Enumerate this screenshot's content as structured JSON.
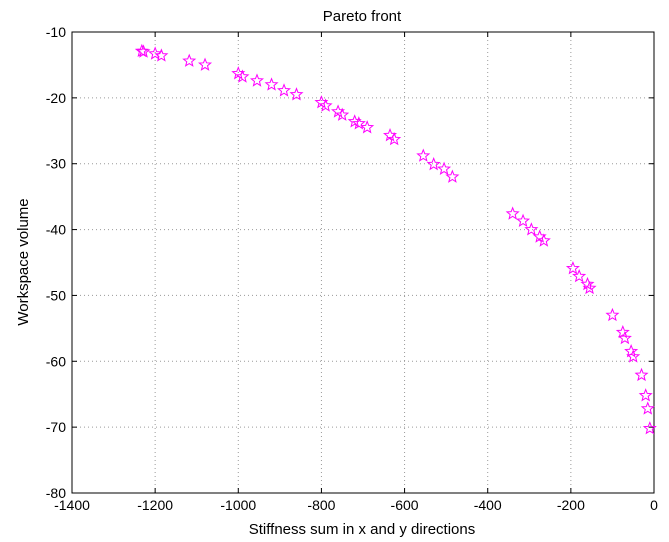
{
  "chart_data": {
    "type": "scatter",
    "title": "Pareto front",
    "xlabel": "Stiffness sum in x and y directions",
    "ylabel": "Workspace volume",
    "xlim": [
      -1400,
      0
    ],
    "ylim": [
      -80,
      -10
    ],
    "xticks": [
      -1400,
      -1200,
      -1000,
      -800,
      -600,
      -400,
      -200,
      0
    ],
    "yticks": [
      -80,
      -70,
      -60,
      -50,
      -40,
      -30,
      -20,
      -10
    ],
    "xtick_labels": [
      "-1400",
      "-1200",
      "-1000",
      "-800",
      "-600",
      "-400",
      "-200",
      "0"
    ],
    "ytick_labels": [
      "-80",
      "-70",
      "-60",
      "-50",
      "-40",
      "-30",
      "-20",
      "-10"
    ],
    "grid": true,
    "marker": "star",
    "marker_color": "#ff00ff",
    "marker_edge_color": "#7a00a0",
    "series": [
      {
        "x": [
          -1232,
          -1228,
          -1200,
          -1185,
          -1118,
          -1080,
          -1000,
          -990,
          -955,
          -920,
          -890,
          -860,
          -800,
          -790,
          -760,
          -750,
          -720,
          -710,
          -690,
          -635,
          -625,
          -555,
          -530,
          -505,
          -485,
          -340,
          -315,
          -295,
          -275,
          -265,
          -195,
          -180,
          -160,
          -155,
          -100,
          -75,
          -70,
          -55,
          -50,
          -30,
          -20,
          -15,
          -10
        ],
        "y": [
          -12.9,
          -13.0,
          -13.3,
          -13.6,
          -14.4,
          -15.0,
          -16.3,
          -16.8,
          -17.4,
          -18.0,
          -18.9,
          -19.5,
          -20.7,
          -21.2,
          -22.1,
          -22.6,
          -23.6,
          -23.9,
          -24.5,
          -25.7,
          -26.3,
          -28.8,
          -30.1,
          -30.8,
          -32.0,
          -37.6,
          -38.7,
          -40.0,
          -41.1,
          -41.7,
          -45.9,
          -47.1,
          -48.3,
          -48.9,
          -53.0,
          -55.6,
          -56.5,
          -58.5,
          -59.3,
          -62.1,
          -65.2,
          -67.2,
          -70.2
        ]
      }
    ]
  }
}
